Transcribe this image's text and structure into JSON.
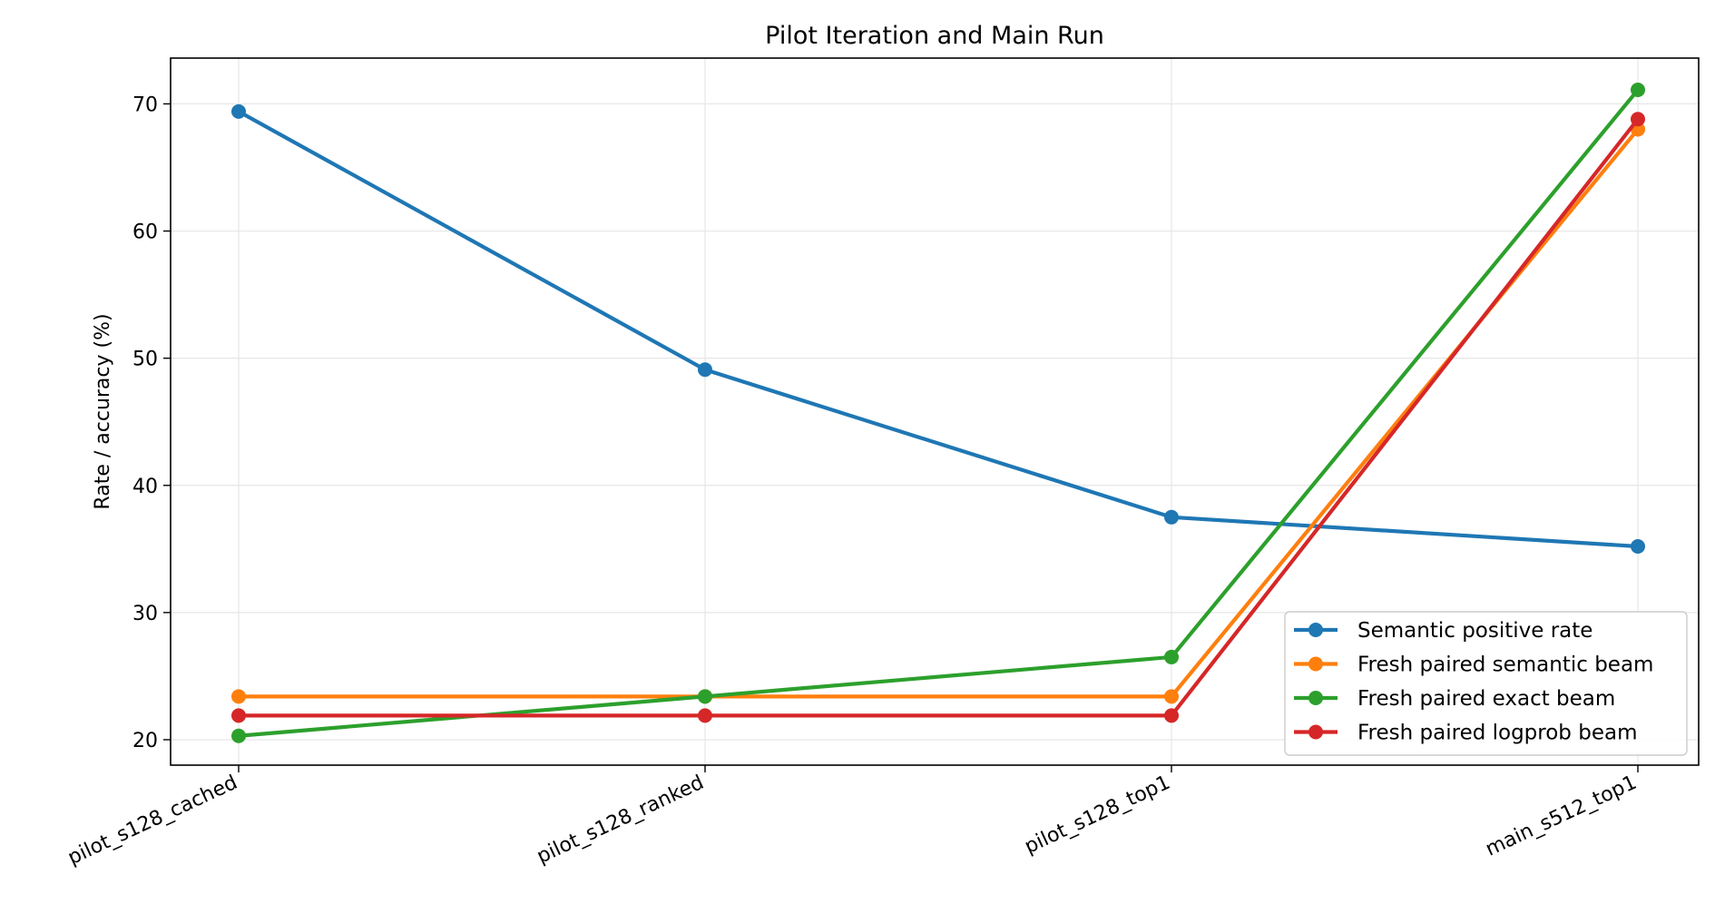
{
  "chart_data": {
    "type": "line",
    "title": "Pilot Iteration and Main Run",
    "xlabel": "",
    "ylabel": "Rate / accuracy (%)",
    "categories": [
      "pilot_s128_cached",
      "pilot_s128_ranked",
      "pilot_s128_top1",
      "main_s512_top1"
    ],
    "ylim": [
      18,
      73.6
    ],
    "yticks": [
      20,
      30,
      40,
      50,
      60,
      70
    ],
    "grid": true,
    "legend_position": "lower-right",
    "series": [
      {
        "name": "Semantic positive rate",
        "color": "#1f77b4",
        "values": [
          69.4,
          49.1,
          37.5,
          35.2
        ]
      },
      {
        "name": "Fresh paired semantic beam",
        "color": "#ff7f0e",
        "values": [
          23.4,
          23.4,
          23.4,
          68.0
        ]
      },
      {
        "name": "Fresh paired exact beam",
        "color": "#2ca02c",
        "values": [
          20.3,
          23.4,
          26.5,
          71.1
        ]
      },
      {
        "name": "Fresh paired logprob beam",
        "color": "#d62728",
        "values": [
          21.9,
          21.9,
          21.9,
          68.8
        ]
      }
    ]
  }
}
